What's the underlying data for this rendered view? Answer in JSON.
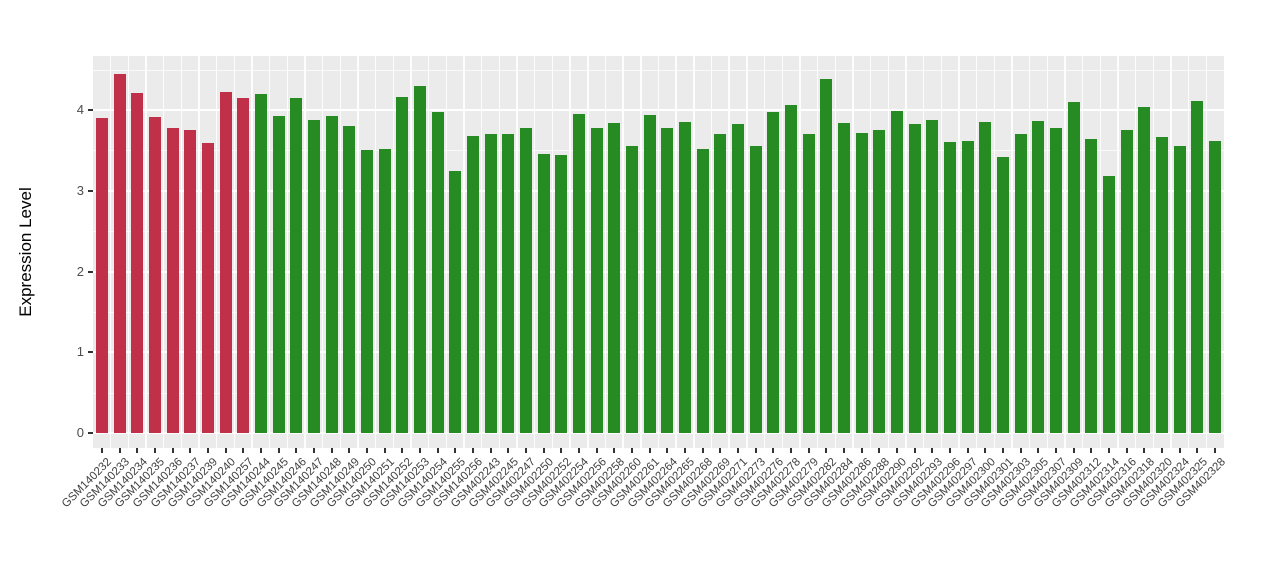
{
  "chart_data": {
    "type": "bar",
    "title": "",
    "ylabel": "Expression Level",
    "xlabel": "",
    "ylim": [
      0,
      4.67
    ],
    "yticks": [
      0,
      1,
      2,
      3,
      4
    ],
    "minor_yticks": [
      0.5,
      1.5,
      2.5,
      3.5,
      4.5
    ],
    "grid": true,
    "legend_position": "none",
    "panel_background": "#EBEBEB",
    "grid_color": "#FFFFFF",
    "colors": {
      "red": "#C13049",
      "green": "#268B22"
    },
    "categories": [
      "GSM140232",
      "GSM140233",
      "GSM140234",
      "GSM140235",
      "GSM140236",
      "GSM140237",
      "GSM140239",
      "GSM140240",
      "GSM140257",
      "GSM140244",
      "GSM140245",
      "GSM140246",
      "GSM140247",
      "GSM140248",
      "GSM140249",
      "GSM140250",
      "GSM140251",
      "GSM140252",
      "GSM140253",
      "GSM140254",
      "GSM140255",
      "GSM140256",
      "GSM402243",
      "GSM402245",
      "GSM402247",
      "GSM402250",
      "GSM402252",
      "GSM402254",
      "GSM402256",
      "GSM402258",
      "GSM402260",
      "GSM402261",
      "GSM402264",
      "GSM402265",
      "GSM402268",
      "GSM402269",
      "GSM402271",
      "GSM402273",
      "GSM402276",
      "GSM402278",
      "GSM402279",
      "GSM402282",
      "GSM402284",
      "GSM402286",
      "GSM402288",
      "GSM402290",
      "GSM402292",
      "GSM402293",
      "GSM402296",
      "GSM402297",
      "GSM402300",
      "GSM402301",
      "GSM402303",
      "GSM402305",
      "GSM402307",
      "GSM402309",
      "GSM402312",
      "GSM402314",
      "GSM402316",
      "GSM402318",
      "GSM402320",
      "GSM402324",
      "GSM402325",
      "GSM402328"
    ],
    "values": [
      3.9,
      4.44,
      4.21,
      3.91,
      3.78,
      3.75,
      3.59,
      4.22,
      4.15,
      4.2,
      3.93,
      4.15,
      3.87,
      3.93,
      3.8,
      3.5,
      3.52,
      4.16,
      4.3,
      3.97,
      3.25,
      3.68,
      3.7,
      3.7,
      3.78,
      3.45,
      3.44,
      3.95,
      3.78,
      3.84,
      3.56,
      3.94,
      3.78,
      3.85,
      3.52,
      3.7,
      3.83,
      3.56,
      3.97,
      4.06,
      3.7,
      4.39,
      3.84,
      3.72,
      3.75,
      3.99,
      3.83,
      3.87,
      3.6,
      3.61,
      3.85,
      3.42,
      3.7,
      3.86,
      3.78,
      4.1,
      3.64,
      3.18,
      3.75,
      4.04,
      3.67,
      3.56,
      4.11,
      3.61
    ],
    "groups": [
      "red",
      "red",
      "red",
      "red",
      "red",
      "red",
      "red",
      "red",
      "red",
      "green",
      "green",
      "green",
      "green",
      "green",
      "green",
      "green",
      "green",
      "green",
      "green",
      "green",
      "green",
      "green",
      "green",
      "green",
      "green",
      "green",
      "green",
      "green",
      "green",
      "green",
      "green",
      "green",
      "green",
      "green",
      "green",
      "green",
      "green",
      "green",
      "green",
      "green",
      "green",
      "green",
      "green",
      "green",
      "green",
      "green",
      "green",
      "green",
      "green",
      "green",
      "green",
      "green",
      "green",
      "green",
      "green",
      "green",
      "green",
      "green",
      "green",
      "green",
      "green",
      "green",
      "green",
      "green"
    ]
  }
}
